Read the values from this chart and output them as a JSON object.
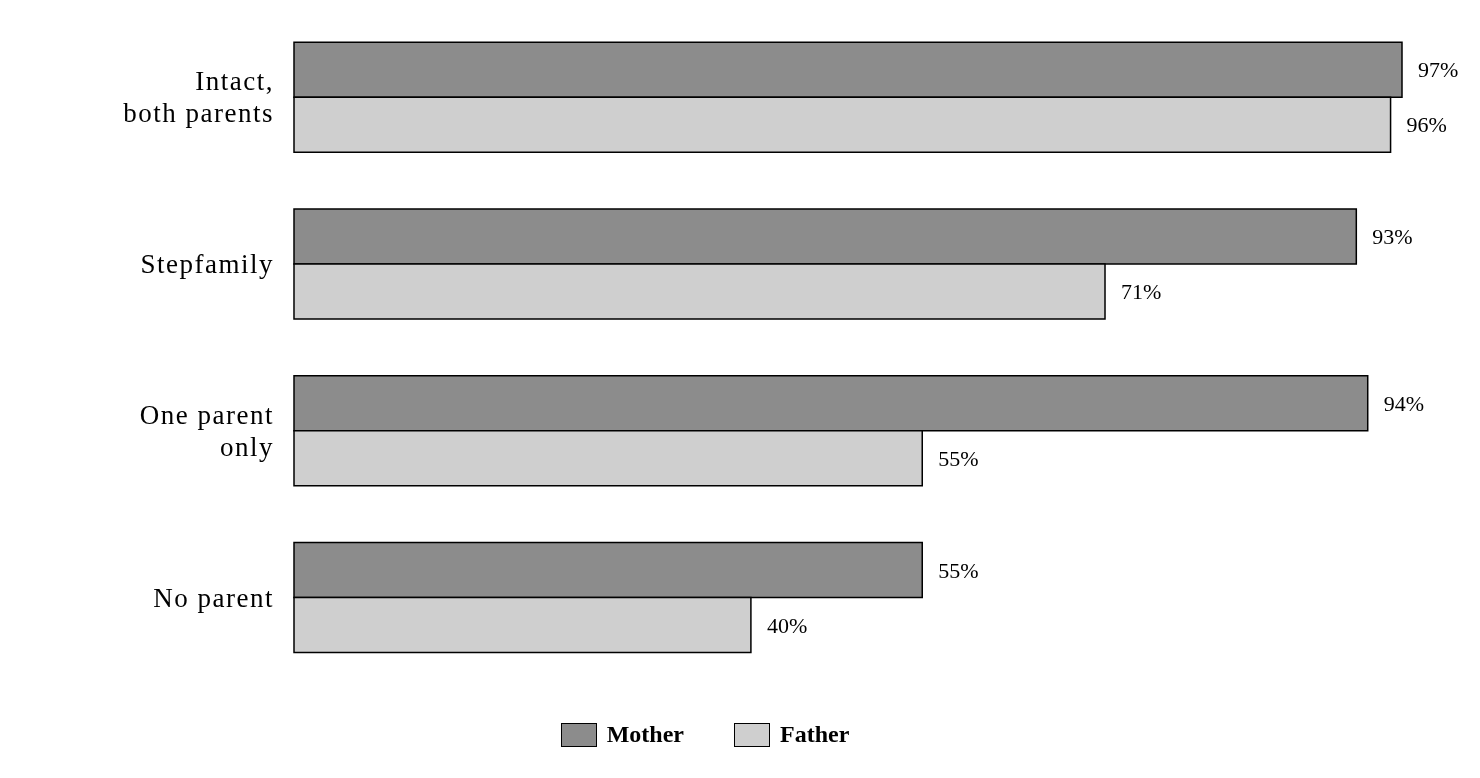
{
  "chart_data": {
    "type": "bar",
    "orientation": "horizontal",
    "categories": [
      "Intact,\nboth parents",
      "Stepfamily",
      "One parent\nonly",
      "No parent"
    ],
    "series": [
      {
        "name": "Mother",
        "color": "#8c8c8c",
        "values": [
          97,
          93,
          94,
          55
        ],
        "value_labels": [
          "97%",
          "93%",
          "94%",
          "55%"
        ]
      },
      {
        "name": "Father",
        "color": "#cfcfcf",
        "values": [
          96,
          71,
          55,
          40
        ],
        "value_labels": [
          "96%",
          "71%",
          "55%",
          "40%"
        ]
      }
    ],
    "legend": "bottom"
  }
}
